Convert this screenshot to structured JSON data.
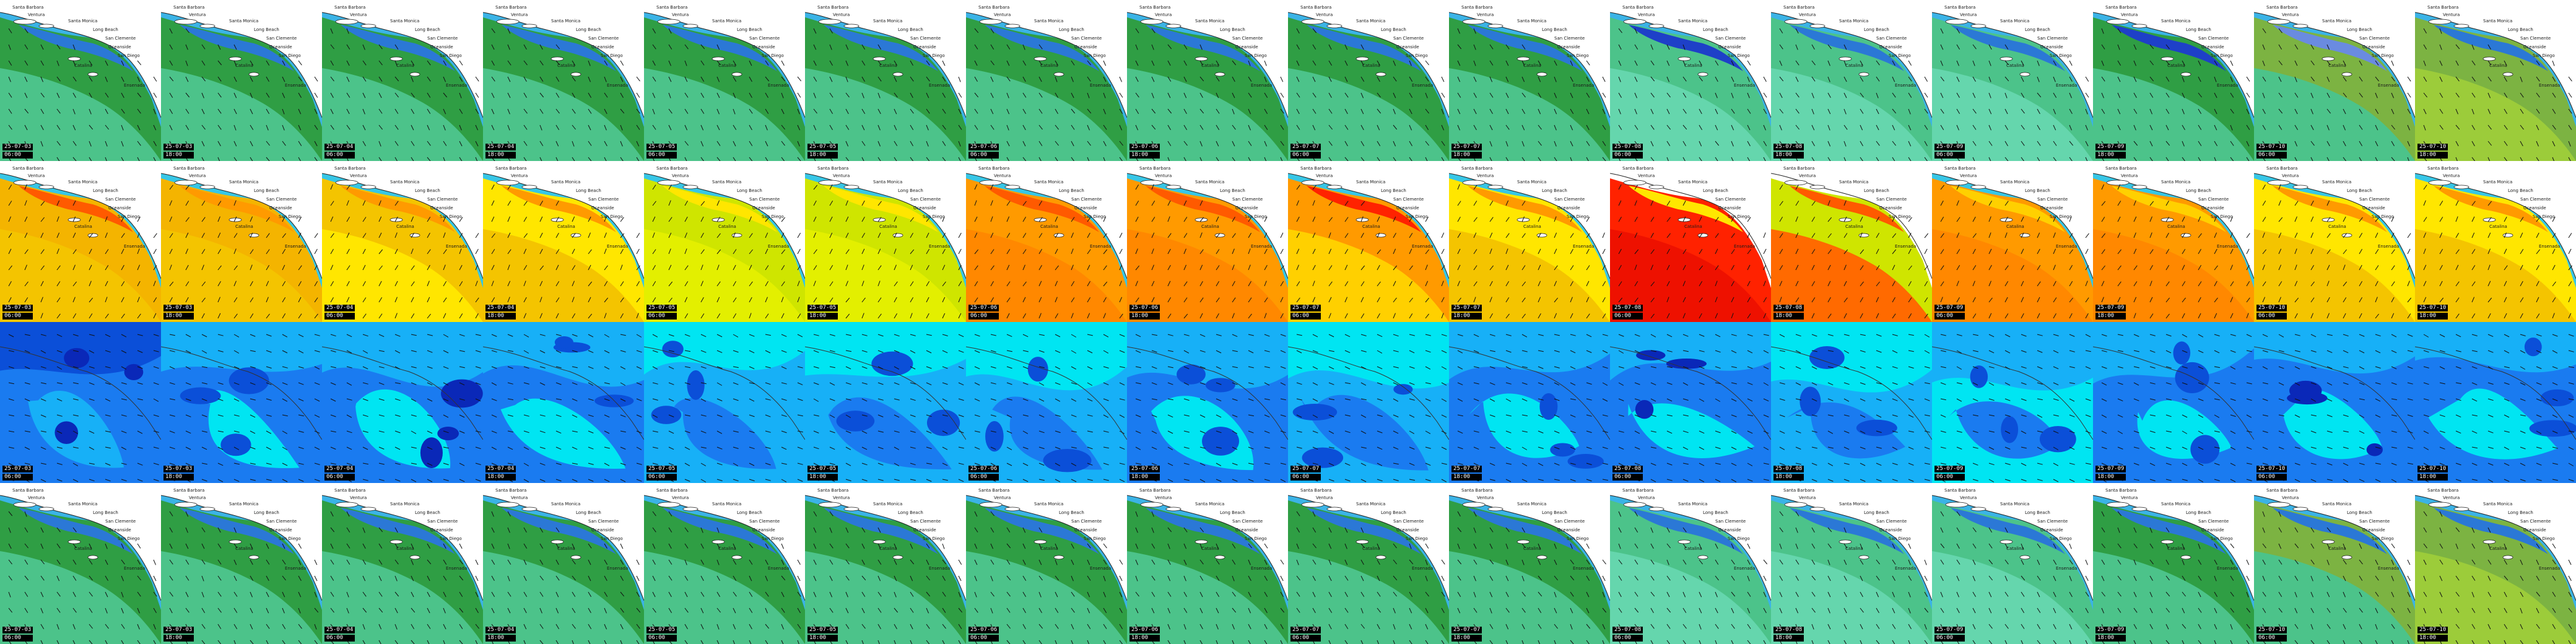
{
  "layers": [
    {
      "name": "wave-height-row",
      "palette": [
        "#2f9e44",
        "#4cc38a",
        "#65d6ad",
        "#3bb3e6",
        "#2b78d6",
        "#6a8be0",
        "#1e40c8"
      ]
    },
    {
      "name": "wave-period-row",
      "palette": [
        "#f4c400",
        "#ffe600",
        "#cfe500",
        "#ff9a00",
        "#ff5a00",
        "#ff2200",
        "#37c6e6"
      ]
    },
    {
      "name": "wind-speed-row",
      "palette": [
        "#0b4fd8",
        "#1a7bf0",
        "#17b0f7",
        "#00e5f2",
        "#0a28b8"
      ]
    },
    {
      "name": "swell-height-row",
      "palette": [
        "#2f9e44",
        "#4cc38a",
        "#65d6ad",
        "#3bb3e6",
        "#2b78d6",
        "#6a8be0",
        "#1e40c8"
      ]
    }
  ],
  "map_labels": [
    "Santa Barbara",
    "Ventura",
    "Santa Monica",
    "Long Beach",
    "San Clemente",
    "Oceanside",
    "San Diego",
    "Catalina",
    "Ensenada"
  ],
  "frames": [
    {
      "date": "25-07-03",
      "time": "06:00"
    },
    {
      "date": "25-07-03",
      "time": "18:00"
    },
    {
      "date": "25-07-04",
      "time": "06:00"
    },
    {
      "date": "25-07-04",
      "time": "18:00"
    },
    {
      "date": "25-07-05",
      "time": "06:00"
    },
    {
      "date": "25-07-05",
      "time": "18:00"
    },
    {
      "date": "25-07-06",
      "time": "06:00"
    },
    {
      "date": "25-07-06",
      "time": "18:00"
    },
    {
      "date": "25-07-07",
      "time": "06:00"
    },
    {
      "date": "25-07-07",
      "time": "18:00"
    },
    {
      "date": "25-07-08",
      "time": "06:00"
    },
    {
      "date": "25-07-08",
      "time": "18:00"
    },
    {
      "date": "25-07-09",
      "time": "06:00"
    },
    {
      "date": "25-07-09",
      "time": "18:00"
    },
    {
      "date": "25-07-10",
      "time": "06:00"
    },
    {
      "date": "25-07-10",
      "time": "18:00"
    }
  ],
  "rows": [
    {
      "layer": "wave-height-row",
      "tiles": [
        {
          "bg": "#2f9e44",
          "band": "#4cc38a",
          "coast": "#3bb3e6",
          "deep": "#2b78d6"
        },
        {
          "bg": "#2f9e44",
          "band": "#4cc38a",
          "coast": "#3bb3e6",
          "deep": "#2b78d6"
        },
        {
          "bg": "#2f9e44",
          "band": "#4cc38a",
          "coast": "#3bb3e6",
          "deep": "#2b78d6"
        },
        {
          "bg": "#2f9e44",
          "band": "#4cc38a",
          "coast": "#3bb3e6",
          "deep": "#2b78d6"
        },
        {
          "bg": "#2f9e44",
          "band": "#4cc38a",
          "coast": "#3bb3e6",
          "deep": "#2b78d6"
        },
        {
          "bg": "#2f9e44",
          "band": "#4cc38a",
          "coast": "#3bb3e6",
          "deep": "#2b78d6"
        },
        {
          "bg": "#2f9e44",
          "band": "#4cc38a",
          "coast": "#3bb3e6",
          "deep": "#2b78d6"
        },
        {
          "bg": "#2f9e44",
          "band": "#4cc38a",
          "coast": "#3bb3e6",
          "deep": "#2b78d6"
        },
        {
          "bg": "#2f9e44",
          "band": "#4cc38a",
          "coast": "#3bb3e6",
          "deep": "#2b78d6"
        },
        {
          "bg": "#2f9e44",
          "band": "#4cc38a",
          "coast": "#3bb3e6",
          "deep": "#2b78d6"
        },
        {
          "bg": "#4cc38a",
          "band": "#65d6ad",
          "coast": "#3bb3e6",
          "deep": "#1e40c8"
        },
        {
          "bg": "#4cc38a",
          "band": "#65d6ad",
          "coast": "#3bb3e6",
          "deep": "#2b78d6"
        },
        {
          "bg": "#4cc38a",
          "band": "#65d6ad",
          "coast": "#3bb3e6",
          "deep": "#2b78d6"
        },
        {
          "bg": "#2f9e44",
          "band": "#4cc38a",
          "coast": "#3bb3e6",
          "deep": "#1e40c8"
        },
        {
          "bg": "#7cb342",
          "band": "#4cc38a",
          "coast": "#3bb3e6",
          "deep": "#6a8be0"
        },
        {
          "bg": "#7cb342",
          "band": "#9ccc3a",
          "coast": "#3bb3e6",
          "deep": "#2b78d6"
        }
      ]
    },
    {
      "layer": "wave-period-row",
      "tiles": [
        {
          "bg": "#f4b400",
          "band": "#f4c400",
          "coast": "#37c6e6",
          "deep": "#ff5a00"
        },
        {
          "bg": "#f4b400",
          "band": "#f4c400",
          "coast": "#37c6e6",
          "deep": "#ff9a00"
        },
        {
          "bg": "#f4c400",
          "band": "#ffe600",
          "coast": "#37c6e6",
          "deep": "#ff9a00"
        },
        {
          "bg": "#ffe600",
          "band": "#f4c400",
          "coast": "#37c6e6",
          "deep": "#ff9a00"
        },
        {
          "bg": "#cfe500",
          "band": "#e3ef00",
          "coast": "#37c6e6",
          "deep": "#ffe600"
        },
        {
          "bg": "#cfe500",
          "band": "#e3ef00",
          "coast": "#37c6e6",
          "deep": "#ffe600"
        },
        {
          "bg": "#ff9a00",
          "band": "#ff8800",
          "coast": "#37c6e6",
          "deep": "#ff5a00"
        },
        {
          "bg": "#ff9a00",
          "band": "#ff8800",
          "coast": "#37c6e6",
          "deep": "#ff5a00"
        },
        {
          "bg": "#ff9a00",
          "band": "#ffd000",
          "coast": "#37c6e6",
          "deep": "#ff2200"
        },
        {
          "bg": "#ffe600",
          "band": "#f4c400",
          "coast": "#37c6e6",
          "deep": "#ff9a00"
        },
        {
          "bg": "#ff2200",
          "band": "#ee1100",
          "coast": "#ffffff",
          "deep": "#ffe600"
        },
        {
          "bg": "#cfe500",
          "band": "#ff6a00",
          "coast": "#ffffff",
          "deep": "#ff5a00"
        },
        {
          "bg": "#ff9a00",
          "band": "#ff8800",
          "coast": "#37c6e6",
          "deep": "#ffd000"
        },
        {
          "bg": "#ff9a00",
          "band": "#ff8800",
          "coast": "#37c6e6",
          "deep": "#ffd000"
        },
        {
          "bg": "#ffe600",
          "band": "#f4c400",
          "coast": "#37c6e6",
          "deep": "#ff9a00"
        },
        {
          "bg": "#ffe600",
          "band": "#f4c400",
          "coast": "#37c6e6",
          "deep": "#ff9a00"
        }
      ]
    },
    {
      "layer": "wind-speed-row",
      "tiles": [
        {
          "bg": "#0b4fd8",
          "band": "#1a7bf0",
          "coast": "#17b0f7",
          "deep": "#0a28b8"
        },
        {
          "bg": "#17b0f7",
          "band": "#1a7bf0",
          "coast": "#00e5f2",
          "deep": "#0b4fd8"
        },
        {
          "bg": "#17b0f7",
          "band": "#1a7bf0",
          "coast": "#00e5f2",
          "deep": "#0a28b8"
        },
        {
          "bg": "#17b0f7",
          "band": "#1a7bf0",
          "coast": "#00e5f2",
          "deep": "#0b4fd8"
        },
        {
          "bg": "#00e5f2",
          "band": "#17b0f7",
          "coast": "#1a7bf0",
          "deep": "#0b4fd8"
        },
        {
          "bg": "#00e5f2",
          "band": "#17b0f7",
          "coast": "#1a7bf0",
          "deep": "#0b4fd8"
        },
        {
          "bg": "#00e5f2",
          "band": "#17b0f7",
          "coast": "#1a7bf0",
          "deep": "#0b4fd8"
        },
        {
          "bg": "#17b0f7",
          "band": "#1a7bf0",
          "coast": "#00e5f2",
          "deep": "#0b4fd8"
        },
        {
          "bg": "#00e5f2",
          "band": "#17b0f7",
          "coast": "#1a7bf0",
          "deep": "#0b4fd8"
        },
        {
          "bg": "#17b0f7",
          "band": "#1a7bf0",
          "coast": "#00e5f2",
          "deep": "#0b4fd8"
        },
        {
          "bg": "#17b0f7",
          "band": "#1a7bf0",
          "coast": "#00e5f2",
          "deep": "#0a28b8"
        },
        {
          "bg": "#00e5f2",
          "band": "#17b0f7",
          "coast": "#1a7bf0",
          "deep": "#0b4fd8"
        },
        {
          "bg": "#17b0f7",
          "band": "#00e5f2",
          "coast": "#1a7bf0",
          "deep": "#0b4fd8"
        },
        {
          "bg": "#17b0f7",
          "band": "#1a7bf0",
          "coast": "#00e5f2",
          "deep": "#0b4fd8"
        },
        {
          "bg": "#17b0f7",
          "band": "#1a7bf0",
          "coast": "#00e5f2",
          "deep": "#0a28b8"
        },
        {
          "bg": "#17b0f7",
          "band": "#1a7bf0",
          "coast": "#00e5f2",
          "deep": "#0b4fd8"
        }
      ]
    },
    {
      "layer": "swell-height-row",
      "tiles": [
        {
          "bg": "#2f9e44",
          "band": "#4cc38a",
          "coast": "#3bb3e6",
          "deep": "#2b78d6"
        },
        {
          "bg": "#2f9e44",
          "band": "#4cc38a",
          "coast": "#3bb3e6",
          "deep": "#2b78d6"
        },
        {
          "bg": "#2f9e44",
          "band": "#4cc38a",
          "coast": "#3bb3e6",
          "deep": "#2b78d6"
        },
        {
          "bg": "#2f9e44",
          "band": "#4cc38a",
          "coast": "#3bb3e6",
          "deep": "#2b78d6"
        },
        {
          "bg": "#2f9e44",
          "band": "#4cc38a",
          "coast": "#3bb3e6",
          "deep": "#2b78d6"
        },
        {
          "bg": "#2f9e44",
          "band": "#4cc38a",
          "coast": "#3bb3e6",
          "deep": "#2b78d6"
        },
        {
          "bg": "#2f9e44",
          "band": "#4cc38a",
          "coast": "#3bb3e6",
          "deep": "#2b78d6"
        },
        {
          "bg": "#2f9e44",
          "band": "#4cc38a",
          "coast": "#3bb3e6",
          "deep": "#2b78d6"
        },
        {
          "bg": "#2f9e44",
          "band": "#4cc38a",
          "coast": "#3bb3e6",
          "deep": "#2b78d6"
        },
        {
          "bg": "#2f9e44",
          "band": "#4cc38a",
          "coast": "#3bb3e6",
          "deep": "#2b78d6"
        },
        {
          "bg": "#4cc38a",
          "band": "#65d6ad",
          "coast": "#3bb3e6",
          "deep": "#2b78d6"
        },
        {
          "bg": "#4cc38a",
          "band": "#65d6ad",
          "coast": "#3bb3e6",
          "deep": "#2b78d6"
        },
        {
          "bg": "#4cc38a",
          "band": "#65d6ad",
          "coast": "#3bb3e6",
          "deep": "#2b78d6"
        },
        {
          "bg": "#2f9e44",
          "band": "#4cc38a",
          "coast": "#3bb3e6",
          "deep": "#2b78d6"
        },
        {
          "bg": "#7cb342",
          "band": "#4cc38a",
          "coast": "#3bb3e6",
          "deep": "#2b78d6"
        },
        {
          "bg": "#7cb342",
          "band": "#9ccc3a",
          "coast": "#3bb3e6",
          "deep": "#2b78d6"
        }
      ]
    }
  ]
}
